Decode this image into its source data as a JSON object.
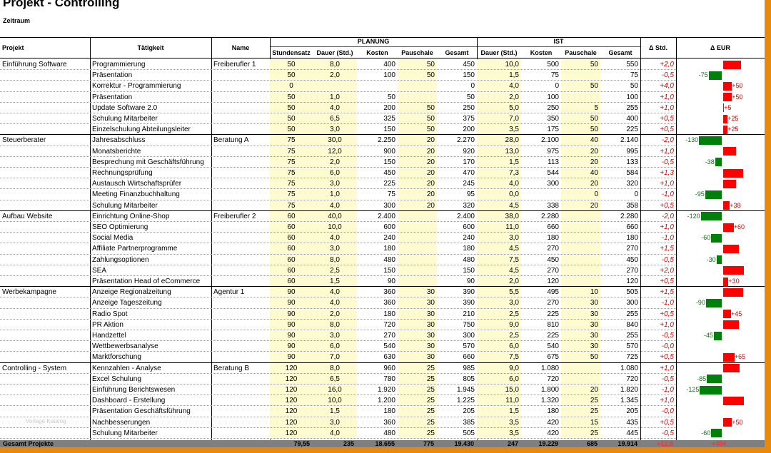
{
  "title": "Projekt - Controlling",
  "subtitle": "Zeitraum",
  "watermark": "Vorlage Katalog",
  "headers": {
    "projekt": "Projekt",
    "taetigkeit": "Tätigkeit",
    "name": "Name",
    "planung": "PLANUNG",
    "ist": "IST",
    "delta_std": "Δ Std.",
    "delta_eur": "Δ EUR",
    "cols": [
      "Stundensatz",
      "Dauer (Std.)",
      "Kosten",
      "Pauschale",
      "Gesamt",
      "Dauer (Std.)",
      "Kosten",
      "Pauschale",
      "Gesamt"
    ]
  },
  "colors": {
    "pos_bar": "#ff0000",
    "neg_bar": "#00800a",
    "delta_text": "#e00000",
    "plan_fill": "#fdfbcf",
    "footer": "#7f7f7f",
    "frame": "#e8890c"
  },
  "rows": [
    {
      "projekt": "Einführung Software",
      "taetigkeit": "Programmierung",
      "name": "Freiberufler 1",
      "satz": "50",
      "p_dauer": "8,0",
      "p_kosten": "400",
      "p_pausch": "50",
      "p_gesamt": "450",
      "i_dauer": "10,0",
      "i_kosten": "500",
      "i_pausch": "50",
      "i_gesamt": "550",
      "d_std": "+2,0",
      "d_eur": 100
    },
    {
      "projekt": "",
      "taetigkeit": "Präsentation",
      "name": "",
      "satz": "50",
      "p_dauer": "2,0",
      "p_kosten": "100",
      "p_pausch": "50",
      "p_gesamt": "150",
      "i_dauer": "1,5",
      "i_kosten": "75",
      "i_pausch": "",
      "i_gesamt": "75",
      "d_std": "-0,5",
      "d_eur": -75
    },
    {
      "projekt": "",
      "taetigkeit": "Korrektur - Programmierung",
      "name": "",
      "satz": "0",
      "p_dauer": "",
      "p_kosten": "",
      "p_pausch": "",
      "p_gesamt": "0",
      "i_dauer": "4,0",
      "i_kosten": "0",
      "i_pausch": "50",
      "i_gesamt": "50",
      "d_std": "+4,0",
      "d_eur": 50
    },
    {
      "projekt": "",
      "taetigkeit": "Präsentation",
      "name": "",
      "satz": "50",
      "p_dauer": "1,0",
      "p_kosten": "50",
      "p_pausch": "",
      "p_gesamt": "50",
      "i_dauer": "2,0",
      "i_kosten": "100",
      "i_pausch": "",
      "i_gesamt": "100",
      "d_std": "+1,0",
      "d_eur": 50
    },
    {
      "projekt": "",
      "taetigkeit": "Update Software 2.0",
      "name": "",
      "satz": "50",
      "p_dauer": "4,0",
      "p_kosten": "200",
      "p_pausch": "50",
      "p_gesamt": "250",
      "i_dauer": "5,0",
      "i_kosten": "250",
      "i_pausch": "5",
      "i_gesamt": "255",
      "d_std": "+1,0",
      "d_eur": 5
    },
    {
      "projekt": "",
      "taetigkeit": "Schulung Mitarbeiter",
      "name": "",
      "satz": "50",
      "p_dauer": "6,5",
      "p_kosten": "325",
      "p_pausch": "50",
      "p_gesamt": "375",
      "i_dauer": "7,0",
      "i_kosten": "350",
      "i_pausch": "50",
      "i_gesamt": "400",
      "d_std": "+0,5",
      "d_eur": 25
    },
    {
      "projekt": "",
      "taetigkeit": "Einzelschulung Abteilungsleiter",
      "name": "",
      "satz": "50",
      "p_dauer": "3,0",
      "p_kosten": "150",
      "p_pausch": "50",
      "p_gesamt": "200",
      "i_dauer": "3,5",
      "i_kosten": "175",
      "i_pausch": "50",
      "i_gesamt": "225",
      "d_std": "+0,5",
      "d_eur": 25
    },
    {
      "projekt": "Steuerberater",
      "taetigkeit": "Jahresabschluss",
      "name": "Beratung A",
      "satz": "75",
      "p_dauer": "30,0",
      "p_kosten": "2.250",
      "p_pausch": "20",
      "p_gesamt": "2.270",
      "i_dauer": "28,0",
      "i_kosten": "2.100",
      "i_pausch": "40",
      "i_gesamt": "2.140",
      "d_std": "-2,0",
      "d_eur": -130
    },
    {
      "projekt": "",
      "taetigkeit": "Monatsberichte",
      "name": "",
      "satz": "75",
      "p_dauer": "12,0",
      "p_kosten": "900",
      "p_pausch": "20",
      "p_gesamt": "920",
      "i_dauer": "13,0",
      "i_kosten": "975",
      "i_pausch": "20",
      "i_gesamt": "995",
      "d_std": "+1,0",
      "d_eur": 75
    },
    {
      "projekt": "",
      "taetigkeit": "Besprechung mit Geschäftsführung",
      "name": "",
      "satz": "75",
      "p_dauer": "2,0",
      "p_kosten": "150",
      "p_pausch": "20",
      "p_gesamt": "170",
      "i_dauer": "1,5",
      "i_kosten": "113",
      "i_pausch": "20",
      "i_gesamt": "133",
      "d_std": "-0,5",
      "d_eur": -38
    },
    {
      "projekt": "",
      "taetigkeit": "Rechnungsprüfung",
      "name": "",
      "satz": "75",
      "p_dauer": "6,0",
      "p_kosten": "450",
      "p_pausch": "20",
      "p_gesamt": "470",
      "i_dauer": "7,3",
      "i_kosten": "544",
      "i_pausch": "40",
      "i_gesamt": "584",
      "d_std": "+1,3",
      "d_eur": 114
    },
    {
      "projekt": "",
      "taetigkeit": "Austausch Wirtschaftsprüfer",
      "name": "",
      "satz": "75",
      "p_dauer": "3,0",
      "p_kosten": "225",
      "p_pausch": "20",
      "p_gesamt": "245",
      "i_dauer": "4,0",
      "i_kosten": "300",
      "i_pausch": "20",
      "i_gesamt": "320",
      "d_std": "+1,0",
      "d_eur": 75
    },
    {
      "projekt": "",
      "taetigkeit": "Meeting Finanzbuchhaltung",
      "name": "",
      "satz": "75",
      "p_dauer": "1,0",
      "p_kosten": "75",
      "p_pausch": "20",
      "p_gesamt": "95",
      "i_dauer": "0,0",
      "i_kosten": "",
      "i_pausch": "0",
      "i_gesamt": "0",
      "d_std": "-1,0",
      "d_eur": -95
    },
    {
      "projekt": "",
      "taetigkeit": "Schulung Mitarbeiter",
      "name": "",
      "satz": "75",
      "p_dauer": "4,0",
      "p_kosten": "300",
      "p_pausch": "20",
      "p_gesamt": "320",
      "i_dauer": "4,5",
      "i_kosten": "338",
      "i_pausch": "20",
      "i_gesamt": "358",
      "d_std": "+0,5",
      "d_eur": 38
    },
    {
      "projekt": "Aufbau Website",
      "taetigkeit": "Einrichtung Online-Shop",
      "name": "Freiberufler 2",
      "satz": "60",
      "p_dauer": "40,0",
      "p_kosten": "2.400",
      "p_pausch": "",
      "p_gesamt": "2.400",
      "i_dauer": "38,0",
      "i_kosten": "2.280",
      "i_pausch": "",
      "i_gesamt": "2.280",
      "d_std": "-2,0",
      "d_eur": -120
    },
    {
      "projekt": "",
      "taetigkeit": "SEO Optimierung",
      "name": "",
      "satz": "60",
      "p_dauer": "10,0",
      "p_kosten": "600",
      "p_pausch": "",
      "p_gesamt": "600",
      "i_dauer": "11,0",
      "i_kosten": "660",
      "i_pausch": "",
      "i_gesamt": "660",
      "d_std": "+1,0",
      "d_eur": 60
    },
    {
      "projekt": "",
      "taetigkeit": "Social Media",
      "name": "",
      "satz": "60",
      "p_dauer": "4,0",
      "p_kosten": "240",
      "p_pausch": "",
      "p_gesamt": "240",
      "i_dauer": "3,0",
      "i_kosten": "180",
      "i_pausch": "",
      "i_gesamt": "180",
      "d_std": "-1,0",
      "d_eur": -60
    },
    {
      "projekt": "",
      "taetigkeit": "Affiliate Partnerprogramme",
      "name": "",
      "satz": "60",
      "p_dauer": "3,0",
      "p_kosten": "180",
      "p_pausch": "",
      "p_gesamt": "180",
      "i_dauer": "4,5",
      "i_kosten": "270",
      "i_pausch": "",
      "i_gesamt": "270",
      "d_std": "+1,5",
      "d_eur": 90
    },
    {
      "projekt": "",
      "taetigkeit": "Zahlungsoptionen",
      "name": "",
      "satz": "60",
      "p_dauer": "8,0",
      "p_kosten": "480",
      "p_pausch": "",
      "p_gesamt": "480",
      "i_dauer": "7,5",
      "i_kosten": "450",
      "i_pausch": "",
      "i_gesamt": "450",
      "d_std": "-0,5",
      "d_eur": -30
    },
    {
      "projekt": "",
      "taetigkeit": "SEA",
      "name": "",
      "satz": "60",
      "p_dauer": "2,5",
      "p_kosten": "150",
      "p_pausch": "",
      "p_gesamt": "150",
      "i_dauer": "4,5",
      "i_kosten": "270",
      "i_pausch": "",
      "i_gesamt": "270",
      "d_std": "+2,0",
      "d_eur": 120
    },
    {
      "projekt": "",
      "taetigkeit": "Präsentation Head of eCommerce",
      "name": "",
      "satz": "60",
      "p_dauer": "1,5",
      "p_kosten": "90",
      "p_pausch": "",
      "p_gesamt": "90",
      "i_dauer": "2,0",
      "i_kosten": "120",
      "i_pausch": "",
      "i_gesamt": "120",
      "d_std": "+0,5",
      "d_eur": 30
    },
    {
      "projekt": "Werbekampagne",
      "taetigkeit": "Anzeige Regionalzeitung",
      "name": "Agentur 1",
      "satz": "90",
      "p_dauer": "4,0",
      "p_kosten": "360",
      "p_pausch": "30",
      "p_gesamt": "390",
      "i_dauer": "5,5",
      "i_kosten": "495",
      "i_pausch": "10",
      "i_gesamt": "505",
      "d_std": "+1,5",
      "d_eur": 115
    },
    {
      "projekt": "",
      "taetigkeit": "Anzeige Tageszeitung",
      "name": "",
      "satz": "90",
      "p_dauer": "4,0",
      "p_kosten": "360",
      "p_pausch": "30",
      "p_gesamt": "390",
      "i_dauer": "3,0",
      "i_kosten": "270",
      "i_pausch": "30",
      "i_gesamt": "300",
      "d_std": "-1,0",
      "d_eur": -90
    },
    {
      "projekt": "",
      "taetigkeit": "Radio Spot",
      "name": "",
      "satz": "90",
      "p_dauer": "2,0",
      "p_kosten": "180",
      "p_pausch": "30",
      "p_gesamt": "210",
      "i_dauer": "2,5",
      "i_kosten": "225",
      "i_pausch": "30",
      "i_gesamt": "255",
      "d_std": "+0,5",
      "d_eur": 45
    },
    {
      "projekt": "",
      "taetigkeit": "PR Aktion",
      "name": "",
      "satz": "90",
      "p_dauer": "8,0",
      "p_kosten": "720",
      "p_pausch": "30",
      "p_gesamt": "750",
      "i_dauer": "9,0",
      "i_kosten": "810",
      "i_pausch": "30",
      "i_gesamt": "840",
      "d_std": "+1,0",
      "d_eur": 90
    },
    {
      "projekt": "",
      "taetigkeit": "Handzettel",
      "name": "",
      "satz": "90",
      "p_dauer": "3,0",
      "p_kosten": "270",
      "p_pausch": "30",
      "p_gesamt": "300",
      "i_dauer": "2,5",
      "i_kosten": "225",
      "i_pausch": "30",
      "i_gesamt": "255",
      "d_std": "-0,5",
      "d_eur": -45
    },
    {
      "projekt": "",
      "taetigkeit": "Wettbewerbsanalyse",
      "name": "",
      "satz": "90",
      "p_dauer": "6,0",
      "p_kosten": "540",
      "p_pausch": "30",
      "p_gesamt": "570",
      "i_dauer": "6,0",
      "i_kosten": "540",
      "i_pausch": "30",
      "i_gesamt": "570",
      "d_std": "-0,0",
      "d_eur": 0
    },
    {
      "projekt": "",
      "taetigkeit": "Marktforschung",
      "name": "",
      "satz": "90",
      "p_dauer": "7,0",
      "p_kosten": "630",
      "p_pausch": "30",
      "p_gesamt": "660",
      "i_dauer": "7,5",
      "i_kosten": "675",
      "i_pausch": "50",
      "i_gesamt": "725",
      "d_std": "+0,5",
      "d_eur": 65
    },
    {
      "projekt": "Controlling - System",
      "taetigkeit": "Kennzahlen - Analyse",
      "name": "Beratung B",
      "satz": "120",
      "p_dauer": "8,0",
      "p_kosten": "960",
      "p_pausch": "25",
      "p_gesamt": "985",
      "i_dauer": "9,0",
      "i_kosten": "1.080",
      "i_pausch": "",
      "i_gesamt": "1.080",
      "d_std": "+1,0",
      "d_eur": 95
    },
    {
      "projekt": "",
      "taetigkeit": "Excel Schulung",
      "name": "",
      "satz": "120",
      "p_dauer": "6,5",
      "p_kosten": "780",
      "p_pausch": "25",
      "p_gesamt": "805",
      "i_dauer": "6,0",
      "i_kosten": "720",
      "i_pausch": "",
      "i_gesamt": "720",
      "d_std": "-0,5",
      "d_eur": -85
    },
    {
      "projekt": "",
      "taetigkeit": "Einführung Berichtswesen",
      "name": "",
      "satz": "120",
      "p_dauer": "16,0",
      "p_kosten": "1.920",
      "p_pausch": "25",
      "p_gesamt": "1.945",
      "i_dauer": "15,0",
      "i_kosten": "1.800",
      "i_pausch": "20",
      "i_gesamt": "1.820",
      "d_std": "-1,0",
      "d_eur": -125
    },
    {
      "projekt": "",
      "taetigkeit": "Dashboard - Erstellung",
      "name": "",
      "satz": "120",
      "p_dauer": "10,0",
      "p_kosten": "1.200",
      "p_pausch": "25",
      "p_gesamt": "1.225",
      "i_dauer": "11,0",
      "i_kosten": "1.320",
      "i_pausch": "25",
      "i_gesamt": "1.345",
      "d_std": "+1,0",
      "d_eur": 120
    },
    {
      "projekt": "",
      "taetigkeit": "Präsentation Geschäftsführung",
      "name": "",
      "satz": "120",
      "p_dauer": "1,5",
      "p_kosten": "180",
      "p_pausch": "25",
      "p_gesamt": "205",
      "i_dauer": "1,5",
      "i_kosten": "180",
      "i_pausch": "25",
      "i_gesamt": "205",
      "d_std": "-0,0",
      "d_eur": 0
    },
    {
      "projekt": "",
      "taetigkeit": "Nachbesserungen",
      "name": "",
      "satz": "120",
      "p_dauer": "3,0",
      "p_kosten": "360",
      "p_pausch": "25",
      "p_gesamt": "385",
      "i_dauer": "3,5",
      "i_kosten": "420",
      "i_pausch": "15",
      "i_gesamt": "435",
      "d_std": "+0,5",
      "d_eur": 50
    },
    {
      "projekt": "",
      "taetigkeit": "Schulung Mitarbeiter",
      "name": "",
      "satz": "120",
      "p_dauer": "4,0",
      "p_kosten": "480",
      "p_pausch": "25",
      "p_gesamt": "505",
      "i_dauer": "3,5",
      "i_kosten": "420",
      "i_pausch": "25",
      "i_gesamt": "445",
      "d_std": "-0,5",
      "d_eur": -60
    }
  ],
  "footer": {
    "label": "Gesamt Projekte",
    "values": [
      "79,55",
      "235",
      "18.655",
      "775",
      "19.430",
      "247",
      "19.229",
      "685",
      "19.914",
      "+12,8",
      "+484"
    ]
  }
}
